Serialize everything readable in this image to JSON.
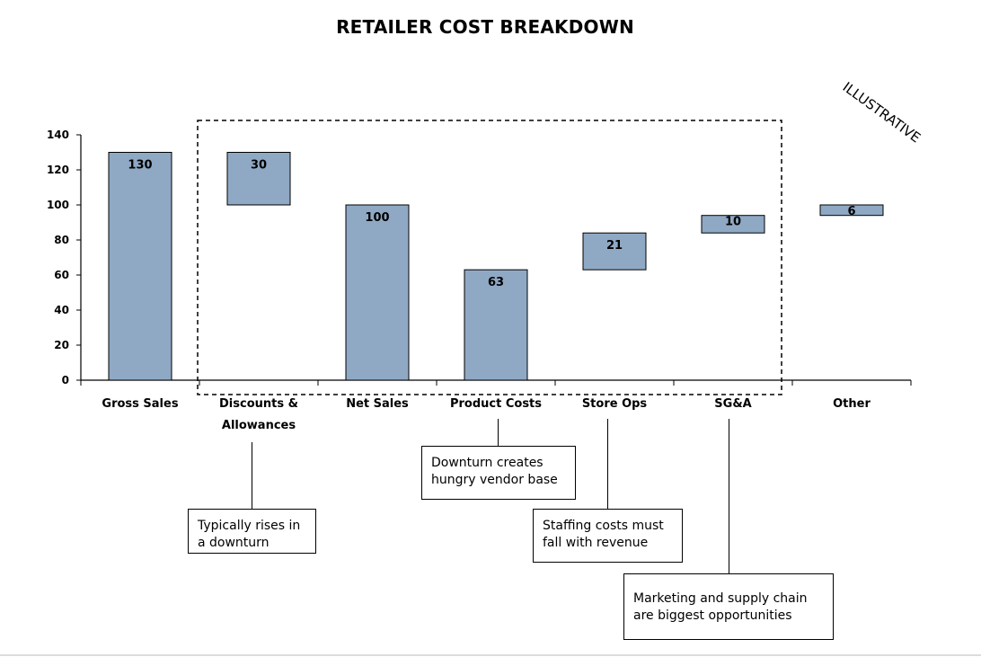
{
  "header": {
    "title": "RETAILER COST BREAKDOWN",
    "stamp": "ILLUSTRATIVE"
  },
  "chart_data": {
    "type": "bar",
    "subtype": "waterfall",
    "title": "RETAILER COST BREAKDOWN",
    "xlabel": "",
    "ylabel": "",
    "ylim": [
      0,
      140
    ],
    "yticks": [
      0,
      20,
      40,
      60,
      80,
      100,
      120,
      140
    ],
    "grid": false,
    "bar_color": "#8fa9c4",
    "categories": [
      "Gross Sales",
      "Discounts &\nAllowances",
      "Net Sales",
      "Product Costs",
      "Store Ops",
      "SG&A",
      "Other"
    ],
    "bars": [
      {
        "category": "Gross Sales",
        "value": 130,
        "start": 0,
        "end": 130,
        "label": "130"
      },
      {
        "category": "Discounts & Allowances",
        "value": 30,
        "start": 100,
        "end": 130,
        "label": "30"
      },
      {
        "category": "Net Sales",
        "value": 100,
        "start": 0,
        "end": 100,
        "label": "100"
      },
      {
        "category": "Product Costs",
        "value": 63,
        "start": 0,
        "end": 63,
        "label": "63"
      },
      {
        "category": "Store Ops",
        "value": 21,
        "start": 63,
        "end": 84,
        "label": "21"
      },
      {
        "category": "SG&A",
        "value": 10,
        "start": 84,
        "end": 94,
        "label": "10"
      },
      {
        "category": "Other",
        "value": 6,
        "start": 94,
        "end": 100,
        "label": "6"
      }
    ],
    "highlight_group": [
      "Discounts & Allowances",
      "Net Sales",
      "Product Costs",
      "Store Ops",
      "SG&A"
    ]
  },
  "callouts": [
    {
      "id": "discounts",
      "category": "Discounts & Allowances",
      "text": "Typically rises in\na downturn"
    },
    {
      "id": "product",
      "category": "Product Costs",
      "text": "Downturn creates\nhungry vendor base"
    },
    {
      "id": "storeops",
      "category": "Store Ops",
      "text": "Staffing costs must\nfall with revenue"
    },
    {
      "id": "sga",
      "category": "SG&A",
      "text": "Marketing and supply chain\nare biggest opportunities"
    }
  ]
}
